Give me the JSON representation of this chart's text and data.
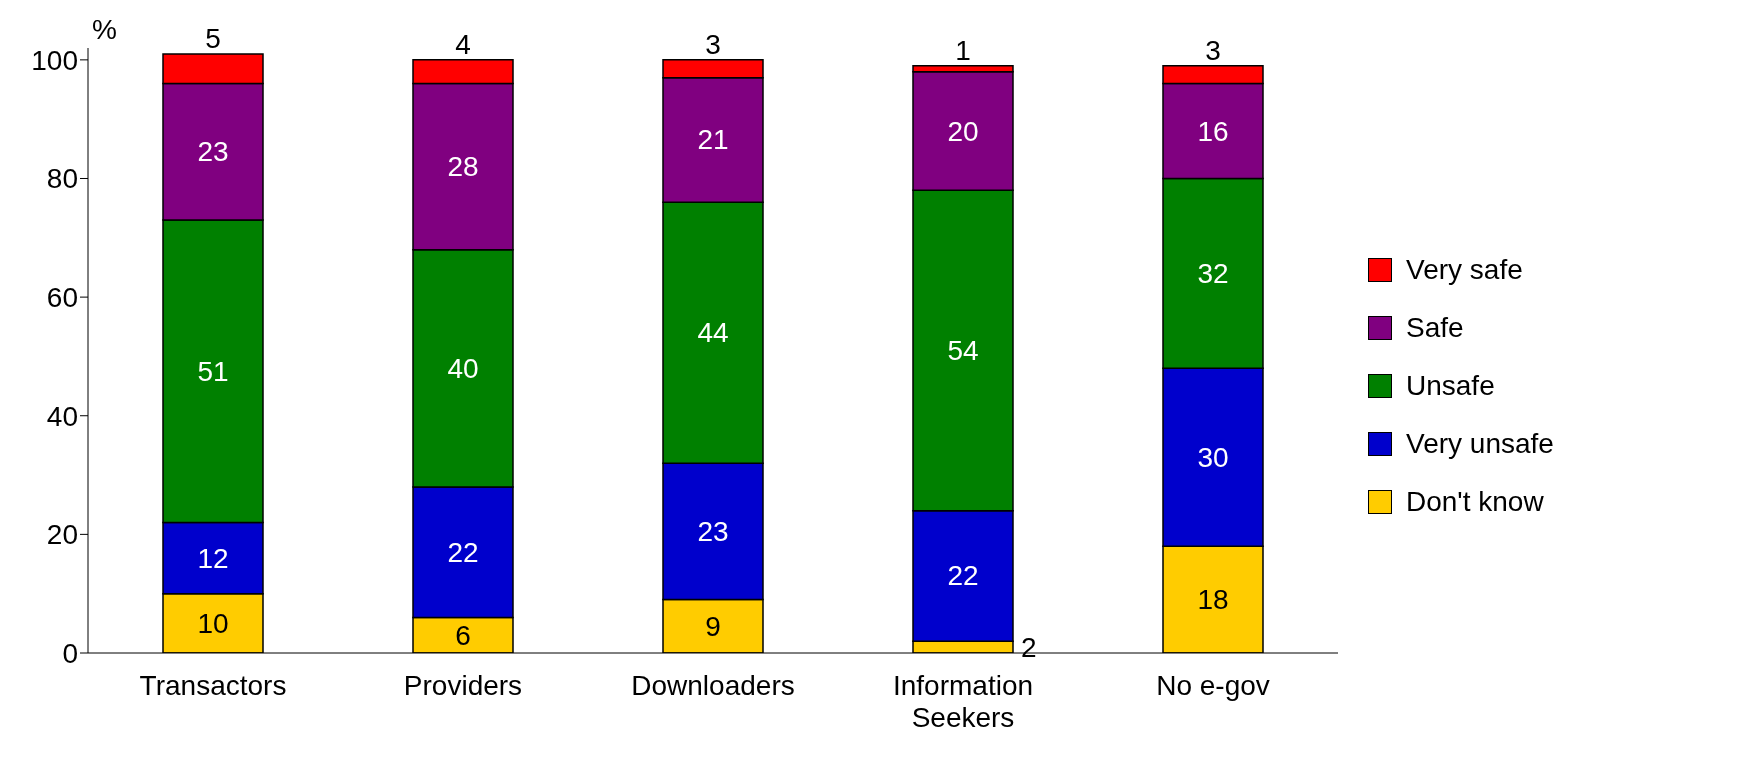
{
  "chart_data": {
    "type": "bar",
    "stacked": true,
    "ylabel": "%",
    "categories": [
      "Transactors",
      "Providers",
      "Downloaders",
      "Information Seekers",
      "No e-gov"
    ],
    "series": [
      {
        "name": "Don't know",
        "color": "#ffcc00",
        "values": [
          10,
          6,
          9,
          2,
          18
        ]
      },
      {
        "name": "Very unsafe",
        "color": "#0000cc",
        "values": [
          12,
          22,
          23,
          22,
          30
        ]
      },
      {
        "name": "Unsafe",
        "color": "#008000",
        "values": [
          51,
          40,
          44,
          54,
          32
        ]
      },
      {
        "name": "Safe",
        "color": "#800080",
        "values": [
          23,
          28,
          21,
          20,
          16
        ]
      },
      {
        "name": "Very safe",
        "color": "#ff0000",
        "values": [
          5,
          4,
          3,
          1,
          3
        ]
      }
    ],
    "ylim": [
      0,
      102
    ],
    "yticks": [
      0,
      20,
      40,
      60,
      80,
      100
    ],
    "grid": false,
    "legend": "right",
    "data_labels": true
  }
}
